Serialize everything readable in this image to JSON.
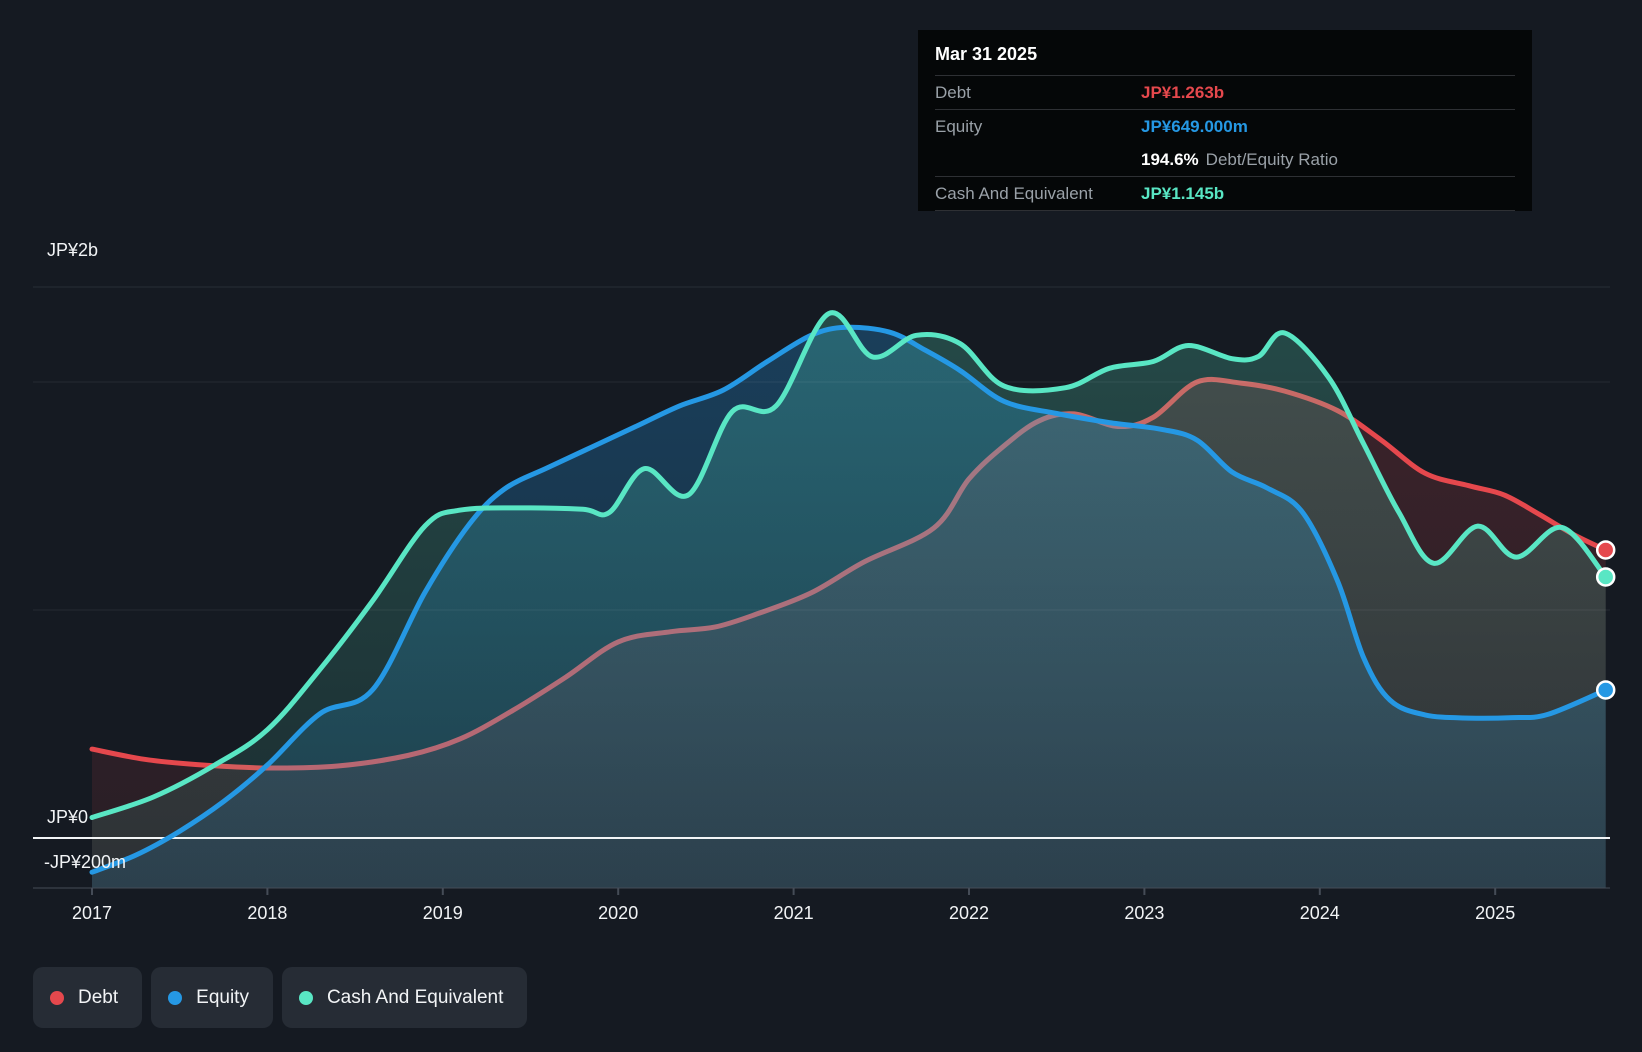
{
  "chart_data": {
    "type": "area",
    "x_ticks": [
      2017,
      2018,
      2019,
      2020,
      2021,
      2022,
      2023,
      2024,
      2025
    ],
    "x_range": [
      2017,
      2025.63
    ],
    "y_axis": {
      "top_label": "JP¥2b",
      "zero_label": "JP¥0",
      "neg_label": "-JP¥200m",
      "gridline_values_m": [
        2000,
        1000
      ],
      "ylim_m": [
        -220,
        2420
      ],
      "grid_on": true
    },
    "series": [
      {
        "name": "Debt",
        "color": "#e5484d",
        "unit": "JP¥ millions",
        "points": [
          [
            2017.0,
            390
          ],
          [
            2017.3,
            345
          ],
          [
            2017.6,
            322
          ],
          [
            2018.0,
            307
          ],
          [
            2018.4,
            316
          ],
          [
            2018.8,
            362
          ],
          [
            2019.1,
            435
          ],
          [
            2019.4,
            560
          ],
          [
            2019.7,
            705
          ],
          [
            2020.0,
            860
          ],
          [
            2020.3,
            905
          ],
          [
            2020.55,
            925
          ],
          [
            2020.8,
            985
          ],
          [
            2021.1,
            1075
          ],
          [
            2021.4,
            1210
          ],
          [
            2021.8,
            1360
          ],
          [
            2022.0,
            1575
          ],
          [
            2022.2,
            1720
          ],
          [
            2022.4,
            1830
          ],
          [
            2022.6,
            1860
          ],
          [
            2022.85,
            1805
          ],
          [
            2023.05,
            1845
          ],
          [
            2023.3,
            2000
          ],
          [
            2023.55,
            1995
          ],
          [
            2023.8,
            1960
          ],
          [
            2024.1,
            1875
          ],
          [
            2024.35,
            1745
          ],
          [
            2024.6,
            1600
          ],
          [
            2024.85,
            1545
          ],
          [
            2025.05,
            1505
          ],
          [
            2025.25,
            1420
          ],
          [
            2025.45,
            1330
          ],
          [
            2025.63,
            1263
          ]
        ]
      },
      {
        "name": "Equity",
        "color": "#2598e4",
        "unit": "JP¥ millions",
        "points": [
          [
            2017.0,
            -150
          ],
          [
            2017.25,
            -75
          ],
          [
            2017.5,
            30
          ],
          [
            2017.75,
            160
          ],
          [
            2018.0,
            320
          ],
          [
            2018.3,
            545
          ],
          [
            2018.6,
            650
          ],
          [
            2018.9,
            1080
          ],
          [
            2019.15,
            1375
          ],
          [
            2019.35,
            1530
          ],
          [
            2019.6,
            1625
          ],
          [
            2019.85,
            1715
          ],
          [
            2020.1,
            1805
          ],
          [
            2020.35,
            1895
          ],
          [
            2020.6,
            1965
          ],
          [
            2020.85,
            2090
          ],
          [
            2021.1,
            2205
          ],
          [
            2021.3,
            2240
          ],
          [
            2021.55,
            2218
          ],
          [
            2021.75,
            2140
          ],
          [
            2021.95,
            2050
          ],
          [
            2022.2,
            1915
          ],
          [
            2022.5,
            1862
          ],
          [
            2022.8,
            1822
          ],
          [
            2023.1,
            1792
          ],
          [
            2023.3,
            1745
          ],
          [
            2023.5,
            1605
          ],
          [
            2023.7,
            1535
          ],
          [
            2023.9,
            1430
          ],
          [
            2024.1,
            1130
          ],
          [
            2024.25,
            790
          ],
          [
            2024.4,
            605
          ],
          [
            2024.6,
            540
          ],
          [
            2024.85,
            526
          ],
          [
            2025.1,
            528
          ],
          [
            2025.3,
            542
          ],
          [
            2025.63,
            649
          ]
        ]
      },
      {
        "name": "Cash And Equivalent",
        "color": "#59e6c4",
        "unit": "JP¥ millions",
        "points": [
          [
            2017.0,
            90
          ],
          [
            2017.35,
            180
          ],
          [
            2017.7,
            320
          ],
          [
            2018.0,
            475
          ],
          [
            2018.3,
            740
          ],
          [
            2018.6,
            1040
          ],
          [
            2018.9,
            1370
          ],
          [
            2019.1,
            1438
          ],
          [
            2019.45,
            1448
          ],
          [
            2019.8,
            1442
          ],
          [
            2019.95,
            1428
          ],
          [
            2020.15,
            1620
          ],
          [
            2020.4,
            1505
          ],
          [
            2020.65,
            1870
          ],
          [
            2020.9,
            1895
          ],
          [
            2021.2,
            2300
          ],
          [
            2021.45,
            2110
          ],
          [
            2021.7,
            2205
          ],
          [
            2021.95,
            2168
          ],
          [
            2022.2,
            1982
          ],
          [
            2022.55,
            1975
          ],
          [
            2022.8,
            2060
          ],
          [
            2023.05,
            2090
          ],
          [
            2023.25,
            2160
          ],
          [
            2023.5,
            2102
          ],
          [
            2023.65,
            2112
          ],
          [
            2023.8,
            2215
          ],
          [
            2024.05,
            2020
          ],
          [
            2024.25,
            1728
          ],
          [
            2024.45,
            1430
          ],
          [
            2024.65,
            1205
          ],
          [
            2024.9,
            1368
          ],
          [
            2025.12,
            1232
          ],
          [
            2025.38,
            1362
          ],
          [
            2025.63,
            1145
          ]
        ]
      }
    ],
    "end_dot_values_m": {
      "debt": 1263,
      "equity": 649,
      "cash": 1145
    },
    "legend_position": "bottom-left"
  },
  "tooltip": {
    "date": "Mar 31 2025",
    "debt_label": "Debt",
    "debt_value": "JP¥1.263b",
    "equity_label": "Equity",
    "equity_value": "JP¥649.000m",
    "ratio_value": "194.6%",
    "ratio_label": "Debt/Equity Ratio",
    "cash_label": "Cash And Equivalent",
    "cash_value": "JP¥1.145b"
  },
  "colors": {
    "background": "#151a22",
    "tooltip_bg": "#050708",
    "legend_chip_bg": "#262c35",
    "zero_line": "#f2f4f6",
    "axis_line": "#454c57",
    "grid_faint": "rgba(255,255,255,0.07)",
    "top_border": "#272d36"
  }
}
